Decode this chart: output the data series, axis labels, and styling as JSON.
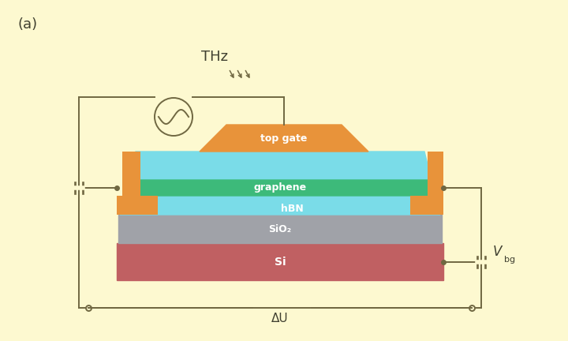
{
  "bg_color": "#fdf9d0",
  "colors": {
    "top_gate": "#e8933a",
    "hbn": "#7adce8",
    "graphene": "#3dba7a",
    "sio2": "#a0a2a8",
    "si": "#c06062",
    "wire": "#706842",
    "text": "#404030",
    "white": "#ffffff"
  },
  "labels": {
    "panel": "(a)",
    "top_gate": "top gate",
    "graphene": "graphene",
    "hbn": "hBN",
    "sio2": "SiO₂",
    "si": "Si",
    "thz": "THz",
    "delta_u": "ΔU",
    "vbg": "V",
    "vbg_sub": "bg"
  }
}
